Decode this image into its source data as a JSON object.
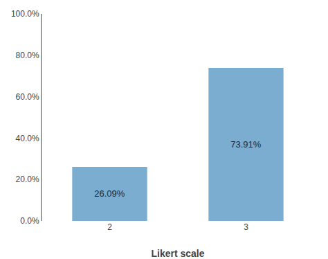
{
  "chart_data": {
    "type": "bar",
    "xlabel": "Likert scale",
    "categories": [
      "2",
      "3"
    ],
    "values": [
      26.09,
      73.91
    ],
    "value_labels": [
      "26.09%",
      "73.91%"
    ],
    "data_labels": true,
    "color": "#7badd0",
    "ylim": [
      0,
      100
    ],
    "yticks": [
      {
        "value": 0,
        "label": "0.0%"
      },
      {
        "value": 20,
        "label": "20.0%"
      },
      {
        "value": 40,
        "label": "40.0%"
      },
      {
        "value": 60,
        "label": "60.0%"
      },
      {
        "value": 80,
        "label": "80.0%"
      },
      {
        "value": 100,
        "label": "100.0%"
      }
    ],
    "grid": false
  }
}
